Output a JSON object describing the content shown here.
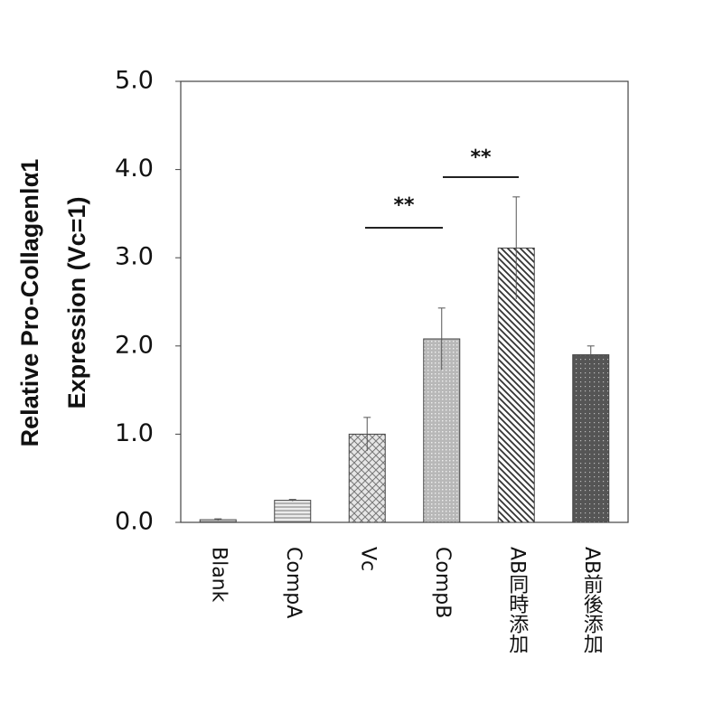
{
  "chart_data": {
    "type": "bar",
    "ylabel_lines": [
      "Relative Pro-CollagenⅠα1",
      "Expression (Vc=1)"
    ],
    "categories": [
      "Blank",
      "CompA",
      "Vc",
      "CompB",
      "AB同時添加",
      "AB前後添加"
    ],
    "values": [
      0.03,
      0.25,
      1.0,
      2.08,
      3.11,
      1.9
    ],
    "errors": [
      0.01,
      0.01,
      0.19,
      0.35,
      0.58,
      0.1
    ],
    "colors": [
      "#f2f2f2",
      "#ececec",
      "#e6e6e6",
      "#b8b8b8",
      "#ffffff",
      "#555555"
    ],
    "ylim": [
      0,
      5
    ],
    "yticks": [
      {
        "value": 0,
        "label": "0.0"
      },
      {
        "value": 1,
        "label": "1.0"
      },
      {
        "value": 2,
        "label": "2.0"
      },
      {
        "value": 3,
        "label": "3.0"
      },
      {
        "value": 4,
        "label": "4.0"
      },
      {
        "value": 5,
        "label": "5.0"
      }
    ],
    "annotations": [
      {
        "text": "**"
      },
      {
        "text": "**"
      }
    ]
  }
}
